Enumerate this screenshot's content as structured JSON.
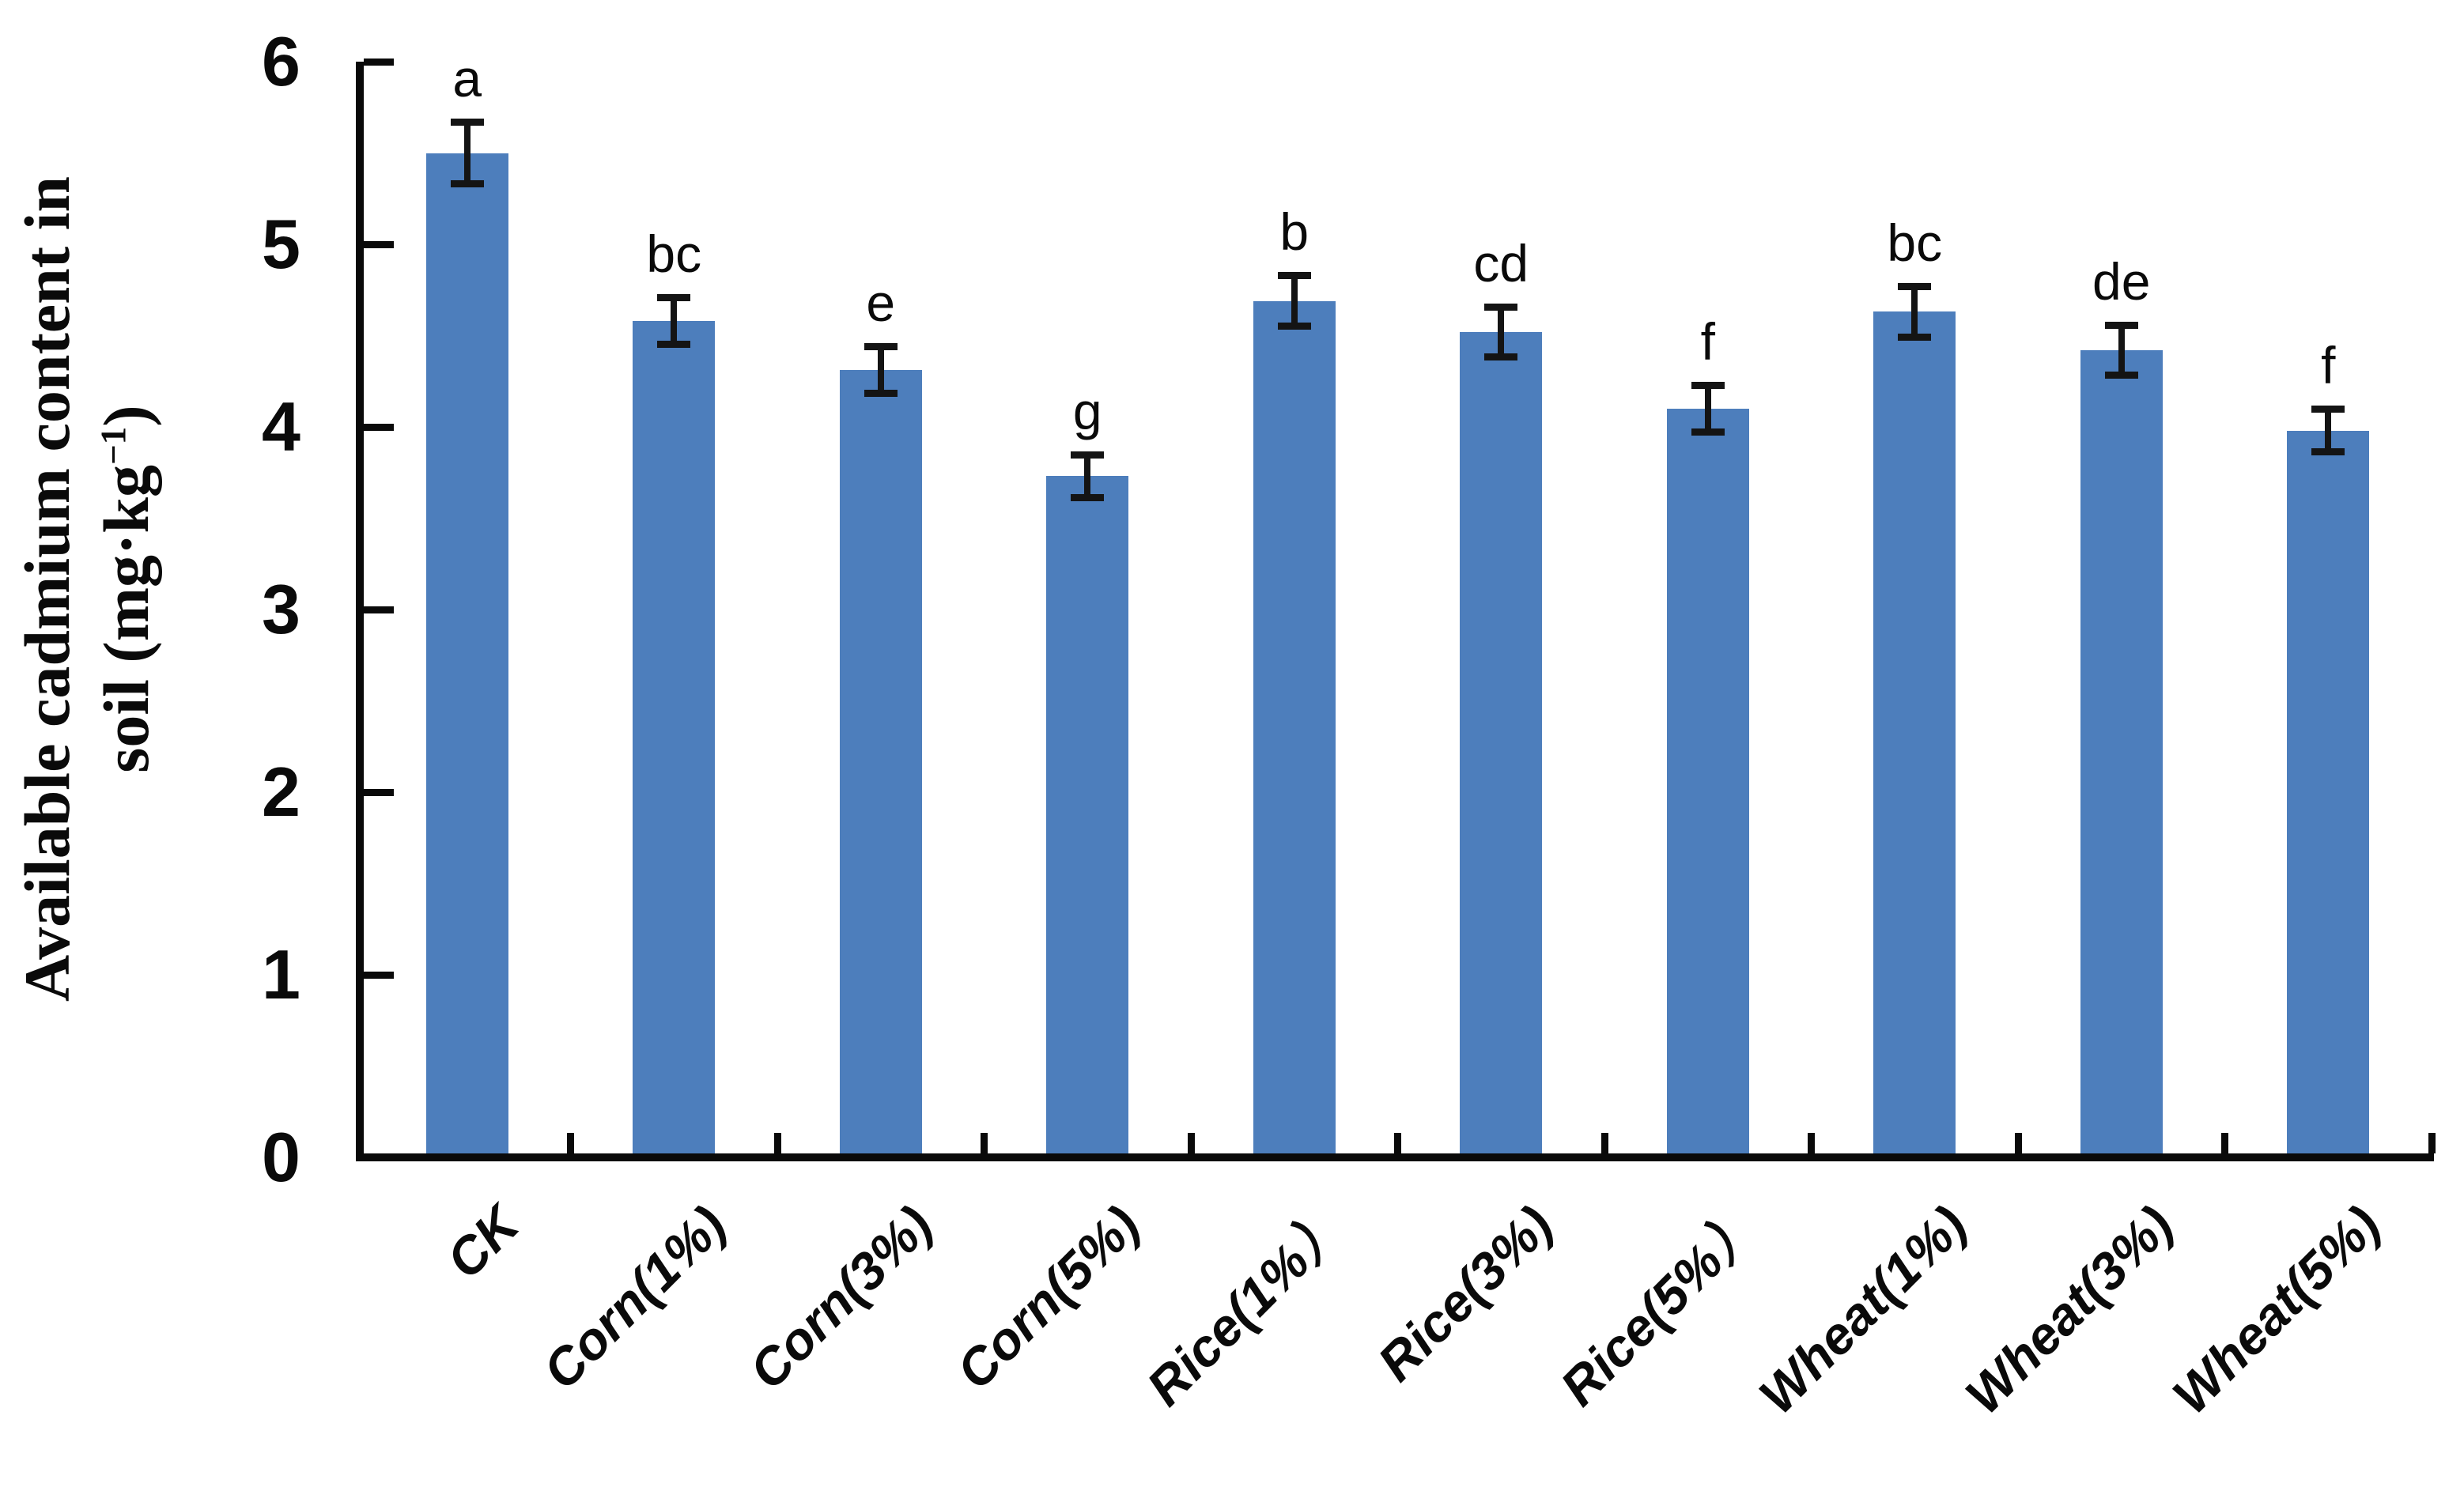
{
  "figure": {
    "background": "#ffffff"
  },
  "y_axis_title": {
    "line1": "Available cadmium content in",
    "line2_prefix": "soil (mg·kg",
    "line2_superscript": "−1",
    "line2_suffix": ")"
  },
  "chart_data": {
    "type": "bar",
    "title": "",
    "xlabel": "",
    "ylabel": "Available cadmium content in soil (mg·kg−1)",
    "categories": [
      "CK",
      "Corn(1%)",
      "Corn(3%)",
      "Corn(5%)",
      "Rice(1%）",
      "Rice(3%)",
      "Rice(5%）",
      "Wheat(1%)",
      "Wheat(3%)",
      "Wheat(5%)"
    ],
    "values": [
      5.5,
      4.58,
      4.31,
      3.73,
      4.69,
      4.52,
      4.1,
      4.63,
      4.42,
      3.98
    ],
    "error_bars": [
      0.17,
      0.13,
      0.13,
      0.12,
      0.14,
      0.14,
      0.13,
      0.14,
      0.14,
      0.12
    ],
    "significance_letters": [
      "a",
      "bc",
      "e",
      "g",
      "b",
      "cd",
      "f",
      "bc",
      "de",
      "f"
    ],
    "y_ticks": [
      0,
      1,
      2,
      3,
      4,
      5,
      6
    ],
    "ylim": [
      0,
      6
    ],
    "grid": false,
    "legend": "none",
    "bar_color": "#4d7ebc",
    "axis_color": "#0a0a0a",
    "error_bar_color": "#141414"
  }
}
